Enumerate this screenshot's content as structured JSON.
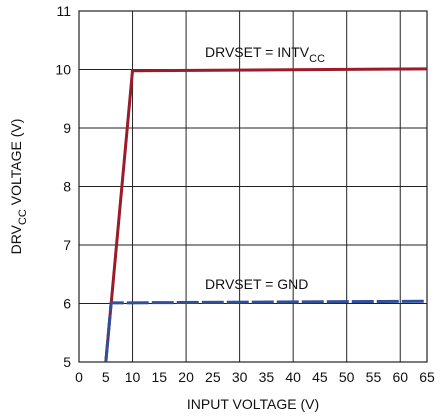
{
  "chart_data": {
    "type": "line",
    "xlabel": "INPUT VOLTAGE (V)",
    "ylabel": {
      "main": "DRV",
      "sub": "CC",
      "rest": " VOLTAGE (V)"
    },
    "xlim": [
      0,
      65
    ],
    "ylim": [
      5,
      11
    ],
    "xticks": [
      0,
      5,
      10,
      15,
      20,
      25,
      30,
      35,
      40,
      45,
      50,
      55,
      60,
      65
    ],
    "yticks": [
      5,
      6,
      7,
      8,
      9,
      10,
      11
    ],
    "grid": true,
    "series": [
      {
        "label": {
          "main": "DRVSET = INTV",
          "sub": "CC"
        },
        "color": "#9b1b2a",
        "style": "solid",
        "x": [
          5,
          10,
          65
        ],
        "y": [
          5,
          9.98,
          10.01
        ]
      },
      {
        "label": {
          "main": "DRVSET = GND",
          "sub": ""
        },
        "color": "#2f4f9a",
        "style": "dashed",
        "x": [
          5,
          6,
          65
        ],
        "y": [
          5,
          6.01,
          6.04
        ]
      }
    ]
  }
}
